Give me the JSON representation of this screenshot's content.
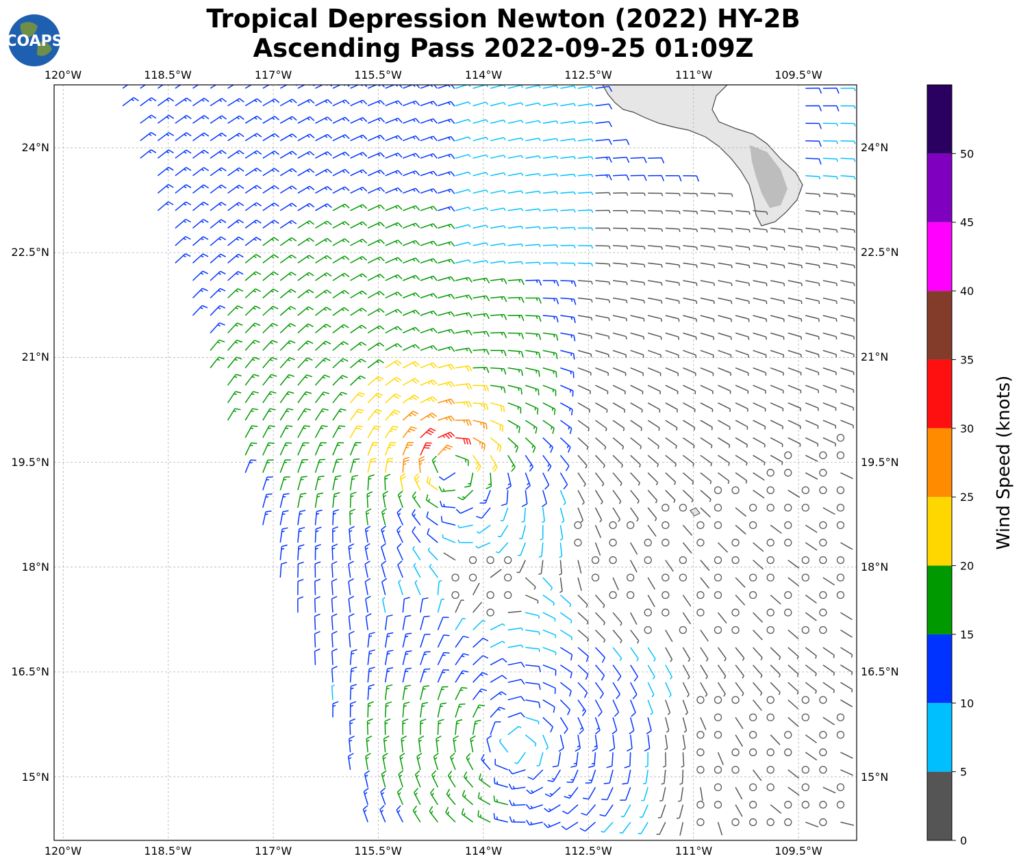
{
  "header": {
    "title_line1": "Tropical Depression Newton (2022) HY-2B",
    "title_line2": "Ascending Pass 2022-09-25 01:09Z"
  },
  "logo": {
    "text": "COAPS",
    "icon": "globe-icon"
  },
  "map": {
    "lon_ticks": [
      "120°W",
      "118.5°W",
      "117°W",
      "115.5°W",
      "114°W",
      "112.5°W",
      "111°W",
      "109.5°W"
    ],
    "lat_ticks": [
      "24°N",
      "22.5°N",
      "21°N",
      "19.5°N",
      "18°N",
      "16.5°N",
      "15°N"
    ],
    "lon_values": [
      -120,
      -118.5,
      -117,
      -115.5,
      -114,
      -112.5,
      -111,
      -109.5
    ],
    "lat_values": [
      24,
      22.5,
      21,
      19.5,
      18,
      16.5,
      15
    ],
    "extent": {
      "lon_min": -120.13,
      "lon_max": -108.67,
      "lat_min": 14.09,
      "lat_max": 24.9
    },
    "gridlines": true,
    "land_feature": "Baja California peninsula (southern tip)",
    "storm_center": {
      "lon": -114.5,
      "lat": 19.5
    },
    "secondary_low": {
      "lon": -113.6,
      "lat": 15.4
    },
    "swath_left_edge": [
      [
        -119.3,
        24.9
      ],
      [
        -115.8,
        14.6
      ]
    ]
  },
  "colorbar": {
    "label": "Wind Speed (knots)",
    "ticks": [
      "0",
      "5",
      "10",
      "15",
      "20",
      "25",
      "30",
      "35",
      "40",
      "45",
      "50"
    ],
    "bins": [
      {
        "from": 0,
        "to": 5,
        "color": "#555555"
      },
      {
        "from": 5,
        "to": 10,
        "color": "#00bfff"
      },
      {
        "from": 10,
        "to": 15,
        "color": "#0033ff"
      },
      {
        "from": 15,
        "to": 20,
        "color": "#009900"
      },
      {
        "from": 20,
        "to": 25,
        "color": "#ffd700"
      },
      {
        "from": 25,
        "to": 30,
        "color": "#ff8c00"
      },
      {
        "from": 30,
        "to": 35,
        "color": "#ff1010"
      },
      {
        "from": 35,
        "to": 40,
        "color": "#843c2a"
      },
      {
        "from": 40,
        "to": 45,
        "color": "#ff00ff"
      },
      {
        "from": 45,
        "to": 50,
        "color": "#8000c0"
      },
      {
        "from": 50,
        "to": 55,
        "color": "#2a0060"
      }
    ]
  }
}
